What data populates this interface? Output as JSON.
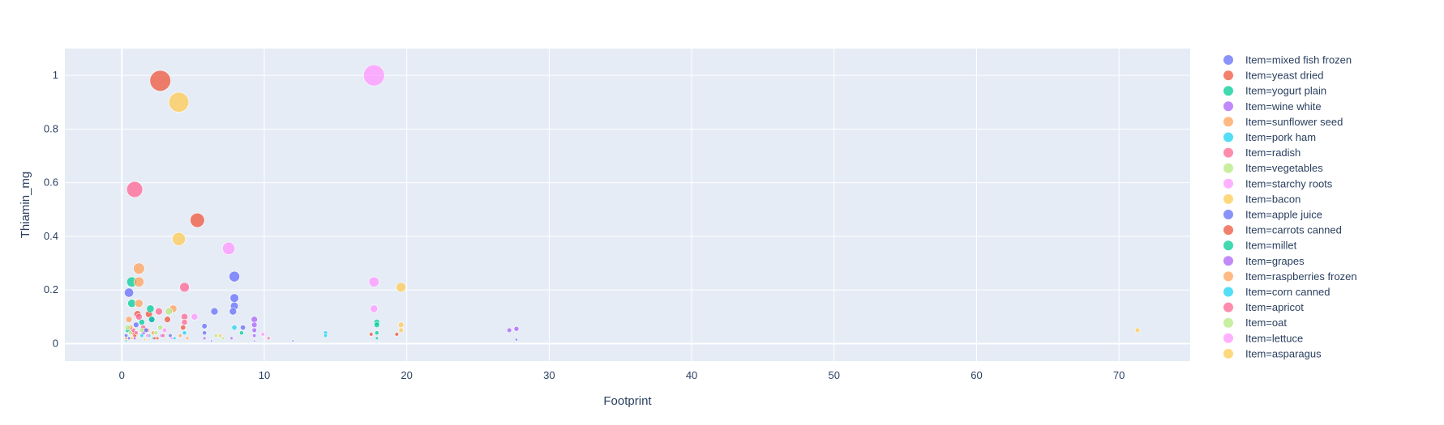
{
  "chart_data": {
    "type": "scatter",
    "xlabel": "Footprint",
    "ylabel": "Thiamin_mg",
    "xlim": [
      -4,
      75
    ],
    "ylim": [
      -0.065,
      1.1
    ],
    "x_ticks": [
      0,
      10,
      20,
      30,
      40,
      50,
      60,
      70
    ],
    "y_ticks": [
      0,
      0.2,
      0.4,
      0.6,
      0.8,
      1
    ],
    "y_tick_labels": [
      "0",
      "0.2",
      "0.4",
      "0.6",
      "0.8",
      "1"
    ],
    "grid": true,
    "legend_position": "right",
    "plot_background": "#e5ecf6",
    "series": [
      {
        "name": "Item=mixed fish frozen",
        "color": "#636efa",
        "points": [
          [
            0.5,
            0.19
          ],
          [
            7.9,
            0.25
          ],
          [
            7.9,
            0.17
          ],
          [
            7.9,
            0.14
          ],
          [
            7.8,
            0.12
          ],
          [
            6.5,
            0.12
          ],
          [
            2.1,
            0.09
          ],
          [
            1.0,
            0.07
          ],
          [
            0.6,
            0.05
          ],
          [
            8.5,
            0.06
          ],
          [
            5.8,
            0.065
          ],
          [
            5.8,
            0.04
          ],
          [
            0.3,
            0.03
          ],
          [
            12,
            0.01
          ],
          [
            27.7,
            0.015
          ]
        ]
      },
      {
        "name": "Item=yeast dried",
        "color": "#EF553B",
        "points": [
          [
            2.7,
            0.98
          ],
          [
            5.3,
            0.46
          ],
          [
            1.9,
            0.11
          ],
          [
            1.1,
            0.11
          ],
          [
            3.2,
            0.09
          ],
          [
            4.3,
            0.06
          ],
          [
            0.8,
            0.04
          ],
          [
            17.5,
            0.035
          ],
          [
            2.5,
            0.02
          ]
        ]
      },
      {
        "name": "Item=yogurt plain",
        "color": "#00cc96",
        "points": [
          [
            0.7,
            0.23
          ],
          [
            0.7,
            0.15
          ],
          [
            2.0,
            0.13
          ],
          [
            1.4,
            0.08
          ],
          [
            2.1,
            0.09
          ],
          [
            17.9,
            0.08
          ],
          [
            17.9,
            0.07
          ],
          [
            17.9,
            0.04
          ],
          [
            17.9,
            0.02
          ],
          [
            0.4,
            0.05
          ]
        ]
      },
      {
        "name": "Item=wine white",
        "color": "#ab63fa",
        "points": [
          [
            9.3,
            0.09
          ],
          [
            9.3,
            0.07
          ],
          [
            9.3,
            0.05
          ],
          [
            9.3,
            0.03
          ],
          [
            9.3,
            0.01
          ],
          [
            27.7,
            0.055
          ],
          [
            27.2,
            0.05
          ],
          [
            5.8,
            0.02
          ],
          [
            1.5,
            0.04
          ]
        ]
      },
      {
        "name": "Item=sunflower seed",
        "color": "#FFA15A",
        "points": [
          [
            1.2,
            0.28
          ],
          [
            1.2,
            0.23
          ],
          [
            1.2,
            0.15
          ],
          [
            3.6,
            0.13
          ],
          [
            0.5,
            0.09
          ],
          [
            1.8,
            0.05
          ],
          [
            4.1,
            0.03
          ],
          [
            0.3,
            0.02
          ]
        ]
      },
      {
        "name": "Item=pork ham",
        "color": "#19d3f3",
        "points": [
          [
            14.3,
            0.04
          ],
          [
            14.3,
            0.03
          ],
          [
            7.9,
            0.06
          ],
          [
            4.4,
            0.04
          ],
          [
            2.2,
            0.02
          ]
        ]
      },
      {
        "name": "Item=radish",
        "color": "#FF6692",
        "points": [
          [
            0.9,
            0.575
          ],
          [
            4.4,
            0.21
          ],
          [
            4.4,
            0.1
          ],
          [
            4.4,
            0.08
          ],
          [
            1.2,
            0.1
          ],
          [
            2.6,
            0.12
          ],
          [
            1.5,
            0.06
          ],
          [
            0.8,
            0.05
          ]
        ]
      },
      {
        "name": "Item=vegetables",
        "color": "#B6E880",
        "points": [
          [
            3.3,
            0.12
          ],
          [
            2.7,
            0.06
          ],
          [
            1.4,
            0.05
          ],
          [
            6.6,
            0.03
          ],
          [
            0.6,
            0.04
          ]
        ]
      },
      {
        "name": "Item=starchy roots",
        "color": "#FF97FF",
        "points": [
          [
            17.7,
            1.0
          ],
          [
            7.5,
            0.355
          ],
          [
            17.7,
            0.23
          ],
          [
            17.7,
            0.13
          ],
          [
            5.1,
            0.1
          ],
          [
            3.0,
            0.05
          ]
        ]
      },
      {
        "name": "Item=bacon",
        "color": "#FECB52",
        "points": [
          [
            4.0,
            0.9
          ],
          [
            4.0,
            0.39
          ],
          [
            19.6,
            0.21
          ],
          [
            19.6,
            0.07
          ],
          [
            19.6,
            0.05
          ],
          [
            71.3,
            0.05
          ],
          [
            1.0,
            0.03
          ]
        ]
      },
      {
        "name": "Item=apple juice",
        "color": "#636efa",
        "points": [
          [
            1.7,
            0.05
          ],
          [
            3.4,
            0.03
          ],
          [
            0.5,
            0.02
          ],
          [
            6.3,
            0.01
          ]
        ]
      },
      {
        "name": "Item=carrots canned",
        "color": "#EF553B",
        "points": [
          [
            19.3,
            0.035
          ],
          [
            0.9,
            0.03
          ],
          [
            2.3,
            0.02
          ]
        ]
      },
      {
        "name": "Item=millet",
        "color": "#00cc96",
        "points": [
          [
            8.4,
            0.04
          ],
          [
            1.9,
            0.03
          ],
          [
            0.3,
            0.01
          ]
        ]
      },
      {
        "name": "Item=grapes",
        "color": "#ab63fa",
        "points": [
          [
            2.8,
            0.03
          ],
          [
            0.9,
            0.02
          ],
          [
            7.7,
            0.02
          ]
        ]
      },
      {
        "name": "Item=raspberries frozen",
        "color": "#FFA15A",
        "points": [
          [
            0.6,
            0.06
          ],
          [
            2.2,
            0.04
          ],
          [
            4.6,
            0.02
          ]
        ]
      },
      {
        "name": "Item=corn canned",
        "color": "#19d3f3",
        "points": [
          [
            1.4,
            0.03
          ],
          [
            3.7,
            0.02
          ]
        ]
      },
      {
        "name": "Item=apricot",
        "color": "#FF6692",
        "points": [
          [
            1.0,
            0.04
          ],
          [
            2.9,
            0.03
          ],
          [
            10.3,
            0.02
          ]
        ]
      },
      {
        "name": "Item=oat",
        "color": "#B6E880",
        "points": [
          [
            0.4,
            0.06
          ],
          [
            2.4,
            0.04
          ],
          [
            7.1,
            0.02
          ]
        ]
      },
      {
        "name": "Item=lettuce",
        "color": "#FF97FF",
        "points": [
          [
            9.9,
            0.035
          ],
          [
            1.8,
            0.03
          ],
          [
            3.5,
            0.02
          ]
        ]
      },
      {
        "name": "Item=asparagus",
        "color": "#FECB52",
        "points": [
          [
            0.7,
            0.02
          ],
          [
            1.6,
            0.015
          ],
          [
            6.9,
            0.03
          ]
        ]
      }
    ]
  }
}
